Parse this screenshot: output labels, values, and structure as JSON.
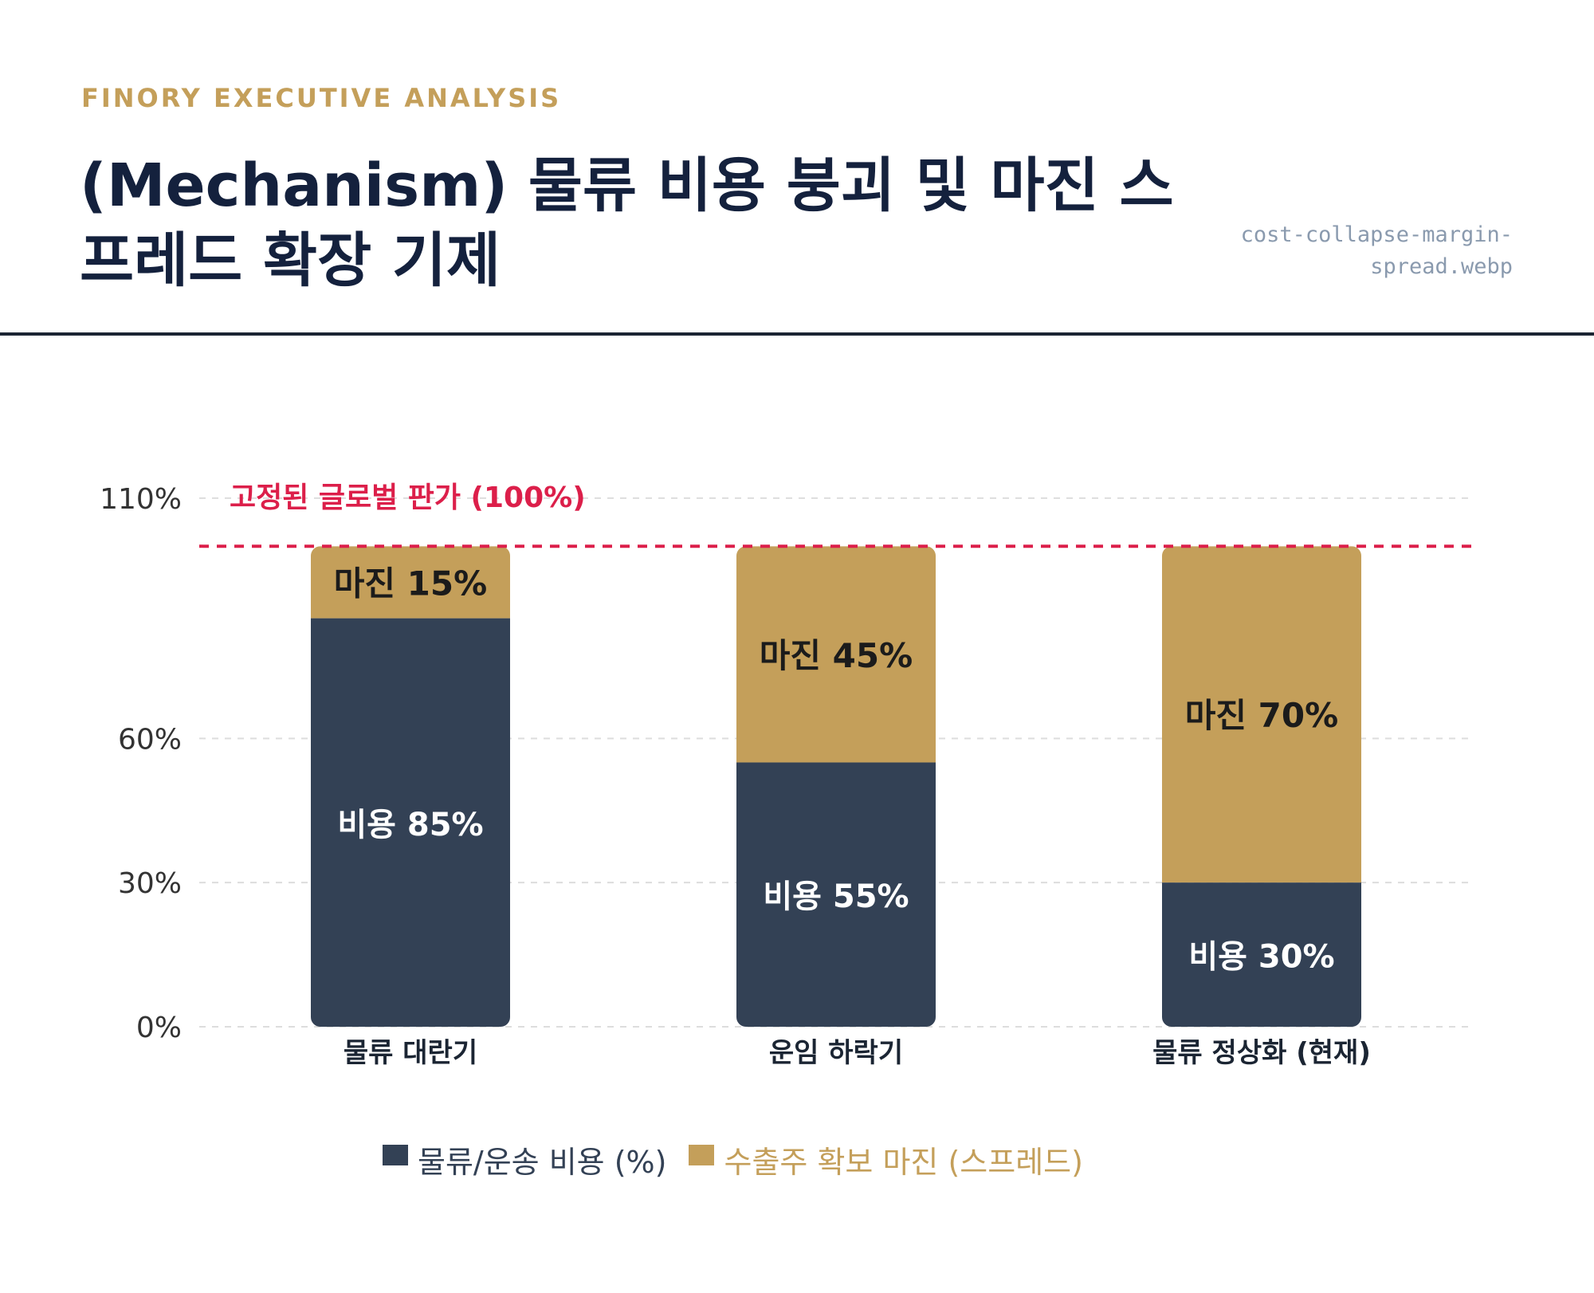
{
  "header": {
    "eyebrow": "FINORY EXECUTIVE ANALYSIS",
    "title": "(Mechanism) 물류 비용 붕괴 및 마진 스프레드 확장 기제",
    "filename": "cost-collapse-margin-spread.webp"
  },
  "colors": {
    "cost": "#334155",
    "margin": "#c49f5a",
    "reference": "#dc1f4a",
    "grid": "#dddddd",
    "axis_text": "#333333",
    "title": "#14213d"
  },
  "chart_data": {
    "type": "bar",
    "stacked": true,
    "categories": [
      "물류 대란기",
      "운임 하락기",
      "물류 정상화 (현재)"
    ],
    "series": [
      {
        "name": "물류/운송 비용 (%)",
        "values": [
          85,
          55,
          30
        ],
        "labels": [
          "비용 85%",
          "비용 55%",
          "비용 30%"
        ]
      },
      {
        "name": "수출주 확보 마진 (스프레드)",
        "values": [
          15,
          45,
          70
        ],
        "labels": [
          "마진 15%",
          "마진 45%",
          "마진 70%"
        ]
      }
    ],
    "y_ticks": [
      {
        "value": 0,
        "label": "0%"
      },
      {
        "value": 30,
        "label": "30%"
      },
      {
        "value": 60,
        "label": "60%"
      },
      {
        "value": 110,
        "label": "110%"
      }
    ],
    "ylim": [
      0,
      110
    ],
    "reference_line": {
      "value": 100,
      "label": "고정된 글로벌 판가 (100%)"
    },
    "grid": true,
    "legend_position": "bottom"
  }
}
